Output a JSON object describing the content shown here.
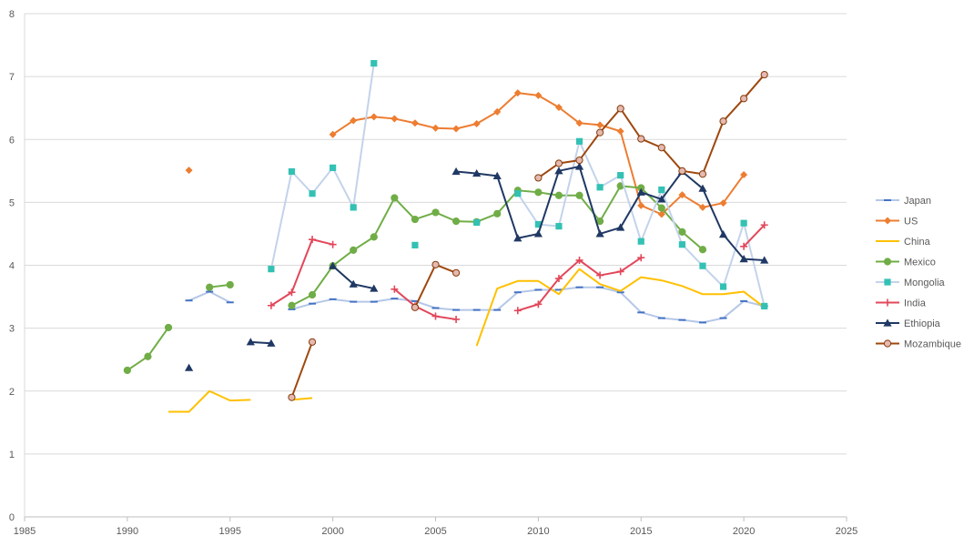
{
  "chart_data": {
    "type": "line",
    "title": "",
    "xlabel": "",
    "ylabel": "",
    "xlim": [
      1985,
      2025
    ],
    "ylim": [
      0,
      8
    ],
    "x_ticks": [
      "1985",
      "1990",
      "1995",
      "2000",
      "2005",
      "2010",
      "2015",
      "2020",
      "2025"
    ],
    "y_ticks": [
      "0",
      "1",
      "2",
      "3",
      "4",
      "5",
      "6",
      "7",
      "8"
    ],
    "grid": "horizontal",
    "legend": "right",
    "x": [
      1990,
      1991,
      1992,
      1993,
      1994,
      1995,
      1996,
      1997,
      1998,
      1999,
      2000,
      2001,
      2002,
      2003,
      2004,
      2005,
      2006,
      2007,
      2008,
      2009,
      2010,
      2011,
      2012,
      2013,
      2014,
      2015,
      2016,
      2017,
      2018,
      2019,
      2020,
      2021
    ],
    "series": [
      {
        "name": "Japan",
        "line_color": "#b4c7e7",
        "marker": "dash",
        "marker_color": "#4472c4",
        "values": [
          null,
          null,
          null,
          3.44,
          3.58,
          3.41,
          null,
          null,
          3.3,
          3.39,
          3.46,
          3.42,
          3.42,
          3.47,
          3.43,
          3.32,
          3.29,
          3.29,
          3.29,
          3.57,
          3.61,
          3.61,
          3.65,
          3.65,
          3.57,
          3.25,
          3.16,
          3.13,
          3.09,
          3.16,
          3.43,
          3.35
        ]
      },
      {
        "name": "US",
        "line_color": "#ed7d31",
        "marker": "diamond",
        "marker_color": "#ed7d31",
        "values": [
          null,
          null,
          null,
          5.51,
          null,
          null,
          null,
          null,
          null,
          null,
          6.08,
          6.3,
          6.36,
          6.33,
          6.26,
          6.18,
          6.17,
          6.25,
          6.44,
          6.74,
          6.7,
          6.51,
          6.26,
          6.23,
          6.13,
          4.95,
          4.81,
          5.12,
          4.92,
          4.99,
          5.44,
          null
        ]
      },
      {
        "name": "China",
        "line_color": "#ffc000",
        "marker": "none",
        "marker_color": "#ffc000",
        "values": [
          null,
          null,
          1.67,
          1.67,
          2.0,
          1.85,
          1.86,
          null,
          1.86,
          1.89,
          null,
          null,
          null,
          null,
          null,
          null,
          null,
          2.72,
          3.63,
          3.75,
          3.75,
          3.54,
          3.94,
          3.7,
          3.59,
          3.81,
          3.76,
          3.67,
          3.54,
          3.54,
          3.58,
          3.33
        ]
      },
      {
        "name": "Mexico",
        "line_color": "#70ad47",
        "marker": "circle",
        "marker_color": "#70ad47",
        "values": [
          2.33,
          2.55,
          3.01,
          null,
          3.65,
          3.69,
          null,
          null,
          3.36,
          3.53,
          3.99,
          4.24,
          4.45,
          5.07,
          4.73,
          4.84,
          4.7,
          4.69,
          4.82,
          5.19,
          5.16,
          5.11,
          5.11,
          4.7,
          5.26,
          5.23,
          4.91,
          4.53,
          4.25,
          null,
          null,
          null
        ]
      },
      {
        "name": "Mongolia",
        "line_color": "#c3d3eb",
        "marker": "square",
        "marker_color": "#33c1b4",
        "values": [
          null,
          null,
          null,
          null,
          null,
          null,
          null,
          3.94,
          5.49,
          5.14,
          5.55,
          4.92,
          7.21,
          null,
          4.32,
          null,
          null,
          4.68,
          null,
          5.14,
          4.65,
          4.62,
          5.97,
          5.24,
          5.43,
          4.38,
          5.2,
          4.33,
          3.99,
          3.66,
          4.67,
          3.35
        ]
      },
      {
        "name": "India",
        "line_color": "#e2475a",
        "marker": "plus",
        "marker_color": "#e2475a",
        "values": [
          null,
          null,
          null,
          null,
          null,
          null,
          null,
          3.36,
          3.57,
          4.41,
          4.33,
          null,
          null,
          3.62,
          3.35,
          3.19,
          3.14,
          null,
          null,
          3.28,
          3.38,
          3.79,
          4.08,
          3.84,
          3.9,
          4.12,
          null,
          null,
          null,
          null,
          4.3,
          4.64
        ]
      },
      {
        "name": "Ethiopia",
        "line_color": "#203864",
        "marker": "triangle",
        "marker_color": "#203864",
        "values": [
          null,
          null,
          null,
          2.37,
          null,
          null,
          2.78,
          2.76,
          null,
          null,
          3.99,
          3.7,
          3.63,
          null,
          null,
          null,
          5.49,
          5.46,
          5.42,
          4.43,
          4.5,
          5.5,
          5.57,
          4.5,
          4.6,
          5.16,
          5.05,
          5.49,
          5.22,
          4.49,
          4.1,
          4.08
        ]
      },
      {
        "name": "Mozambique",
        "line_color": "#9e480e",
        "marker": "circle",
        "marker_color": "#843c0c",
        "marker_fill": "#e6b9b0",
        "values": [
          null,
          null,
          null,
          null,
          null,
          null,
          null,
          null,
          1.9,
          2.78,
          null,
          null,
          null,
          null,
          3.33,
          4.01,
          3.88,
          null,
          null,
          null,
          5.39,
          5.62,
          5.67,
          6.11,
          6.49,
          6.01,
          5.87,
          5.5,
          5.45,
          6.29,
          6.65,
          7.03
        ]
      }
    ]
  }
}
